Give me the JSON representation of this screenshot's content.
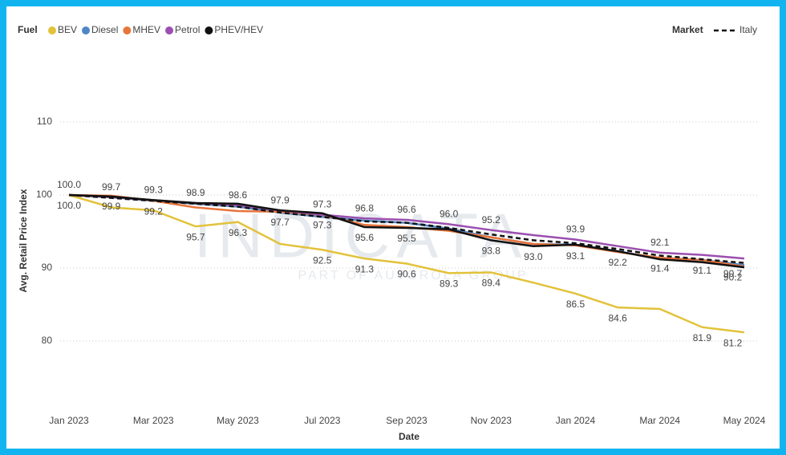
{
  "chart_data": {
    "type": "line",
    "legend_title": "Fuel",
    "legend2_title": "Market",
    "watermark": "INDICATA",
    "watermark_sub": "PART OF AUTOROLA GROUP",
    "xlabel": "Date",
    "ylabel": "Avg. Retail Price Index",
    "categories": [
      "Jan 2023",
      null,
      "Mar 2023",
      null,
      "May 2023",
      null,
      "Jul 2023",
      null,
      "Sep 2023",
      null,
      "Nov 2023",
      null,
      "Jan 2024",
      null,
      "Mar 2024",
      null,
      "May 2024"
    ],
    "ylim": [
      72,
      115
    ],
    "yticks": [
      80,
      90,
      100,
      110
    ],
    "grid": true,
    "series": [
      {
        "name": "BEV",
        "color": "#e2c23a",
        "values": [
          100,
          98.3,
          97.9,
          95.7,
          96.3,
          93.3,
          92.5,
          91.3,
          90.6,
          89.3,
          89.4,
          88.0,
          86.5,
          84.6,
          84.4,
          81.9,
          81.2
        ],
        "value_labels": [
          "100.0",
          null,
          null,
          "95.7",
          "96.3",
          null,
          "92.5",
          "91.3",
          "90.6",
          "89.3",
          "89.4",
          null,
          "86.5",
          "84.6",
          null,
          "81.9",
          "81.2"
        ]
      },
      {
        "name": "Diesel",
        "color": "#4f86c6",
        "values": [
          100,
          99.7,
          99.2,
          98.8,
          98.4,
          97.6,
          97.0,
          96.5,
          96.2,
          95.4,
          94.2,
          93.3,
          93.2,
          92.3,
          91.3,
          91.1,
          90.4
        ]
      },
      {
        "name": "MHEV",
        "color": "#e8743b",
        "values": [
          100,
          99.9,
          99.2,
          98.3,
          97.8,
          97.7,
          97.3,
          95.9,
          95.6,
          95.1,
          94.2,
          93.3,
          93.1,
          92.2,
          91.4,
          91.1,
          90.2
        ],
        "value_labels": [
          null,
          "99.9",
          "99.2",
          null,
          null,
          "97.7",
          "97.3",
          null,
          null,
          null,
          null,
          null,
          "93.1",
          "92.2",
          "91.4",
          "91.1",
          "90.2"
        ]
      },
      {
        "name": "Petrol",
        "color": "#9b4fb0",
        "values": [
          100,
          99.7,
          99.3,
          98.9,
          98.6,
          97.9,
          97.3,
          96.8,
          96.6,
          96.0,
          95.2,
          94.5,
          93.9,
          93.0,
          92.1,
          91.8,
          91.3
        ],
        "value_labels": [
          "100.0",
          "99.7",
          "99.3",
          "98.9",
          "98.6",
          "97.9",
          "97.3",
          "96.8",
          "96.6",
          "96.0",
          "95.2",
          null,
          "93.9",
          null,
          "92.1",
          null,
          null
        ]
      },
      {
        "name": "PHEV/HEV",
        "color": "#111111",
        "values": [
          100,
          99.8,
          99.3,
          98.9,
          98.8,
          97.9,
          97.5,
          95.6,
          95.5,
          95.3,
          93.8,
          93.0,
          93.2,
          92.3,
          91.2,
          90.8,
          90.1
        ],
        "value_labels": [
          null,
          null,
          null,
          null,
          null,
          null,
          null,
          "95.6",
          "95.5",
          null,
          "93.8",
          "93.0",
          null,
          null,
          null,
          null,
          null
        ]
      },
      {
        "name": "Italy",
        "color": "#111111",
        "dashed": true,
        "values": [
          100,
          99.6,
          99.2,
          98.8,
          98.4,
          97.6,
          97.0,
          96.4,
          96.2,
          95.5,
          94.6,
          93.8,
          93.4,
          92.6,
          91.7,
          91.2,
          90.7
        ],
        "value_labels": [
          null,
          null,
          null,
          null,
          null,
          null,
          null,
          null,
          null,
          null,
          null,
          null,
          null,
          null,
          null,
          null,
          "90.7"
        ]
      }
    ]
  }
}
